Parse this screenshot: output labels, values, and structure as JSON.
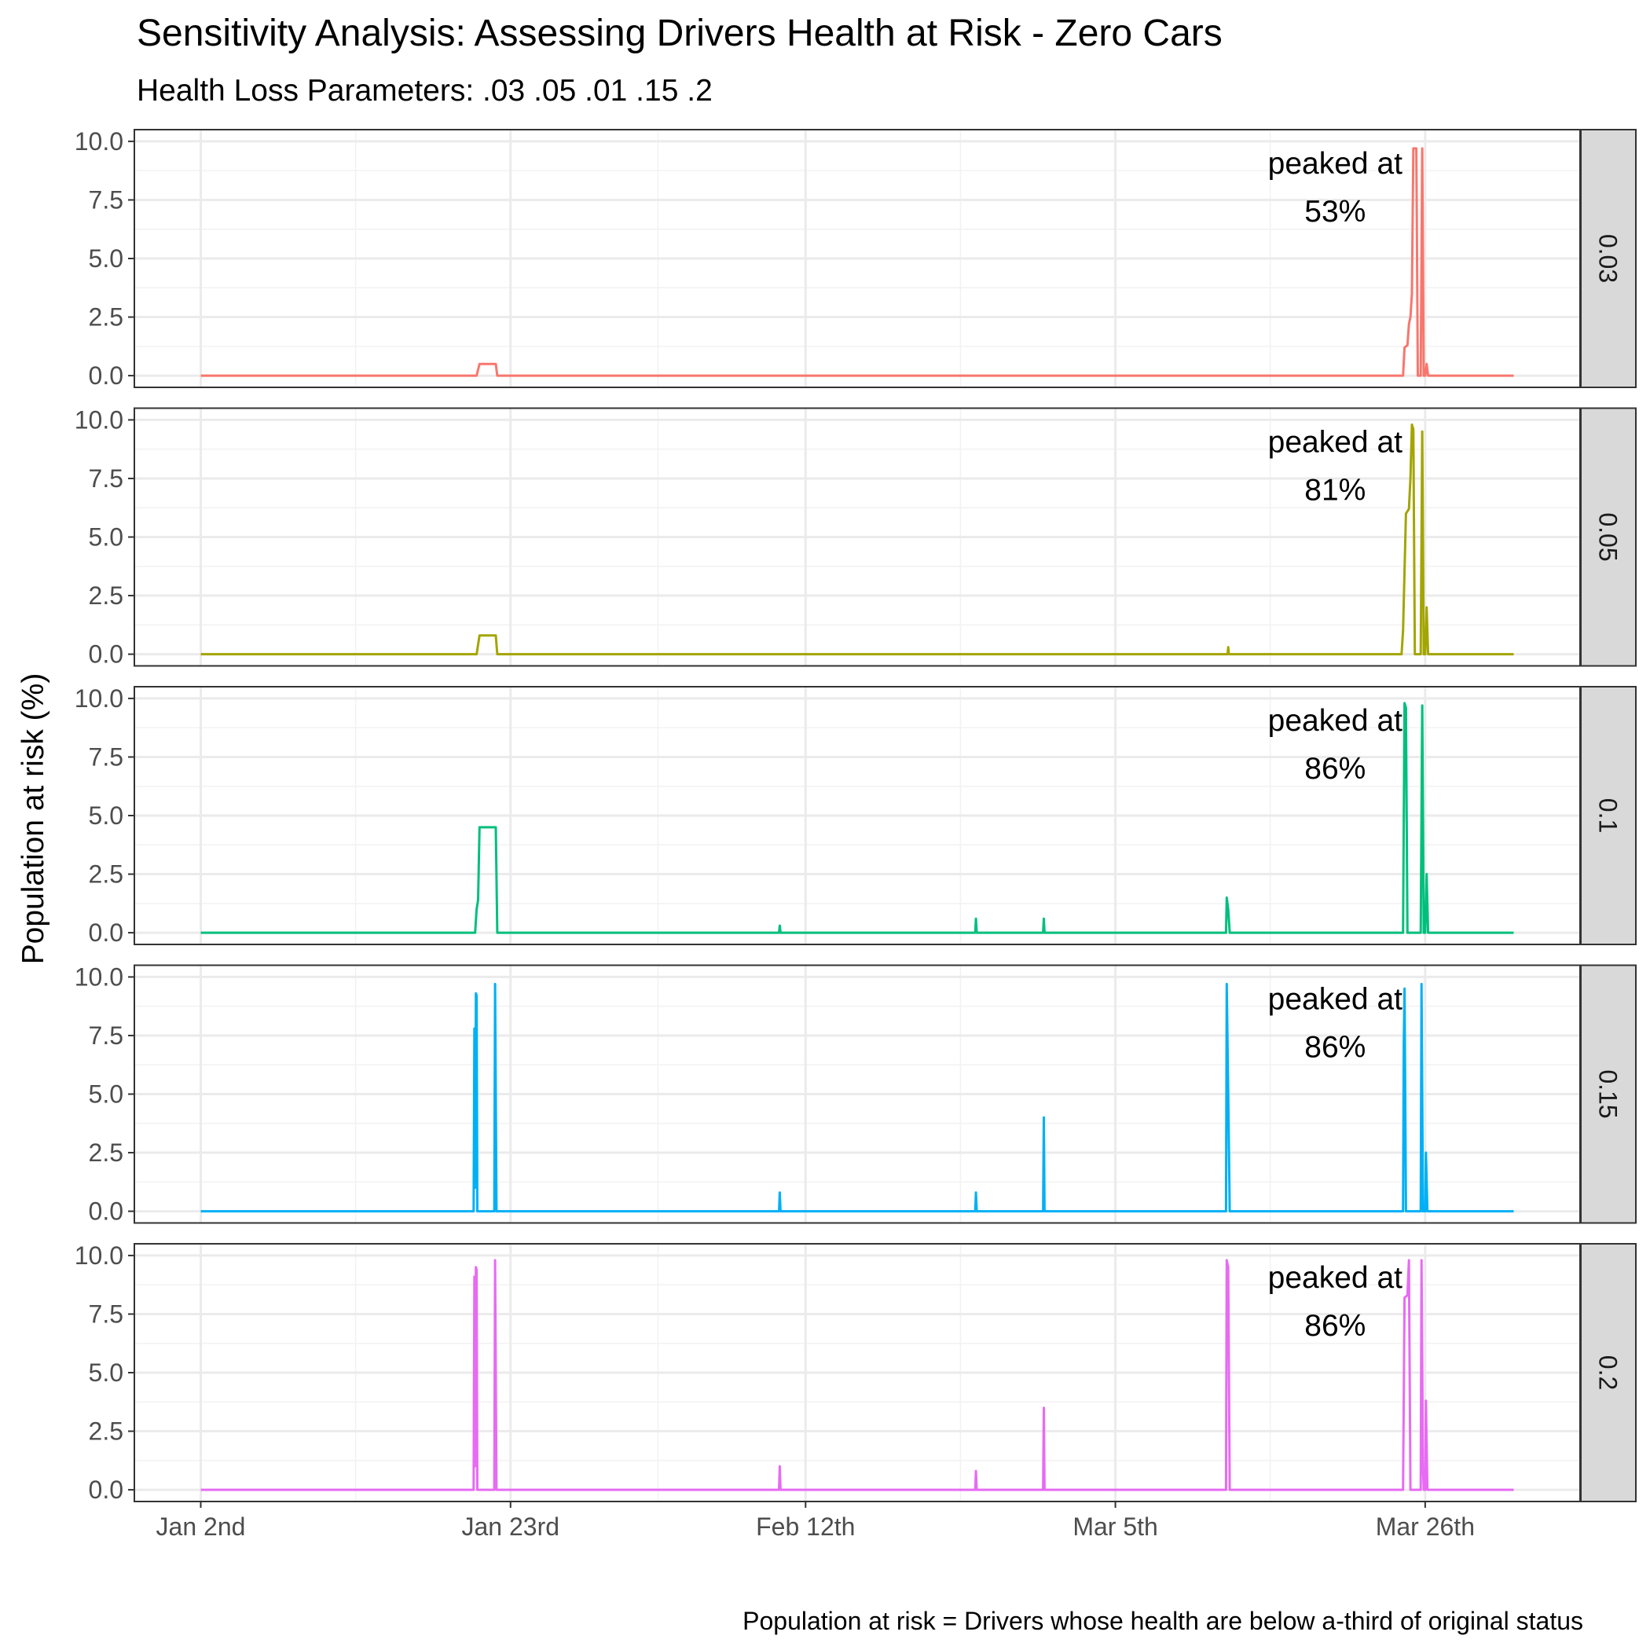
{
  "chart_data": {
    "type": "line",
    "title": "Sensitivity Analysis: Assessing Drivers Health at Risk - Zero Cars",
    "subtitle": "Health Loss Parameters: .03 .05 .01 .15 .2",
    "xlabel": "",
    "ylabel": "Population at risk (%)",
    "caption": "Population at risk = Drivers whose health are below a-third of original status",
    "x_ticks": [
      {
        "day": 0,
        "label": "Jan 2nd"
      },
      {
        "day": 21,
        "label": "Jan 23rd"
      },
      {
        "day": 41,
        "label": "Feb 12th"
      },
      {
        "day": 62,
        "label": "Mar 5th"
      },
      {
        "day": 83,
        "label": "Mar 26th"
      }
    ],
    "xlim_days": [
      -4.5,
      93.5
    ],
    "y_ticks": [
      "0.0",
      "2.5",
      "5.0",
      "7.5",
      "10.0"
    ],
    "ylim": [
      -0.5,
      10.5
    ],
    "grid": true,
    "facets": [
      {
        "label": "0.03",
        "color": "#F8766D",
        "annotation": [
          "peaked at",
          "53%"
        ],
        "points": [
          [
            0,
            0
          ],
          [
            18.7,
            0
          ],
          [
            18.9,
            0.5
          ],
          [
            20,
            0.5
          ],
          [
            20.1,
            0
          ],
          [
            81.5,
            0
          ],
          [
            81.6,
            1.2
          ],
          [
            81.8,
            1.3
          ],
          [
            81.9,
            2.2
          ],
          [
            82.0,
            2.5
          ],
          [
            82.1,
            3.5
          ],
          [
            82.2,
            9.7
          ],
          [
            82.4,
            9.7
          ],
          [
            82.5,
            0
          ],
          [
            82.7,
            0
          ],
          [
            82.8,
            9.7
          ],
          [
            82.9,
            0
          ],
          [
            83.0,
            0
          ],
          [
            83.1,
            0.5
          ],
          [
            83.2,
            0
          ],
          [
            89,
            0
          ]
        ]
      },
      {
        "label": "0.05",
        "color": "#A3A500",
        "annotation": [
          "peaked at",
          "81%"
        ],
        "points": [
          [
            0,
            0
          ],
          [
            18.7,
            0
          ],
          [
            18.9,
            0.8
          ],
          [
            20,
            0.8
          ],
          [
            20.1,
            0
          ],
          [
            69.6,
            0
          ],
          [
            69.65,
            0.3
          ],
          [
            69.7,
            0
          ],
          [
            81.4,
            0
          ],
          [
            81.5,
            1
          ],
          [
            81.7,
            6
          ],
          [
            81.9,
            6.2
          ],
          [
            82.0,
            7.5
          ],
          [
            82.1,
            9.8
          ],
          [
            82.2,
            9.6
          ],
          [
            82.3,
            0
          ],
          [
            82.7,
            0
          ],
          [
            82.8,
            9.5
          ],
          [
            82.9,
            0
          ],
          [
            83.0,
            0
          ],
          [
            83.1,
            2
          ],
          [
            83.2,
            0
          ],
          [
            89,
            0
          ]
        ]
      },
      {
        "label": "0.1",
        "color": "#00BF7D",
        "annotation": [
          "peaked at",
          "86%"
        ],
        "points": [
          [
            0,
            0
          ],
          [
            18.6,
            0
          ],
          [
            18.7,
            1
          ],
          [
            18.8,
            1.4
          ],
          [
            18.9,
            4.5
          ],
          [
            20,
            4.5
          ],
          [
            20.1,
            0
          ],
          [
            39.2,
            0
          ],
          [
            39.25,
            0.3
          ],
          [
            39.3,
            0
          ],
          [
            52.5,
            0
          ],
          [
            52.55,
            0.6
          ],
          [
            52.6,
            0
          ],
          [
            57.1,
            0
          ],
          [
            57.15,
            0.6
          ],
          [
            57.2,
            0
          ],
          [
            69.5,
            0
          ],
          [
            69.55,
            1.5
          ],
          [
            69.65,
            1
          ],
          [
            69.75,
            0
          ],
          [
            81.5,
            0
          ],
          [
            81.6,
            9.8
          ],
          [
            81.7,
            9.6
          ],
          [
            81.8,
            0
          ],
          [
            82.7,
            0
          ],
          [
            82.8,
            9.7
          ],
          [
            82.9,
            0
          ],
          [
            83.0,
            0
          ],
          [
            83.1,
            2.5
          ],
          [
            83.2,
            0
          ],
          [
            89,
            0
          ]
        ]
      },
      {
        "label": "0.15",
        "color": "#00B0F6",
        "annotation": [
          "peaked at",
          "86%"
        ],
        "points": [
          [
            0,
            0
          ],
          [
            18.5,
            0
          ],
          [
            18.55,
            7.8
          ],
          [
            18.6,
            1
          ],
          [
            18.65,
            9.3
          ],
          [
            18.7,
            9.2
          ],
          [
            18.75,
            0
          ],
          [
            19.9,
            0
          ],
          [
            19.95,
            9.7
          ],
          [
            20.05,
            0
          ],
          [
            39.2,
            0
          ],
          [
            39.25,
            0.8
          ],
          [
            39.3,
            0
          ],
          [
            52.5,
            0
          ],
          [
            52.55,
            0.8
          ],
          [
            52.6,
            0
          ],
          [
            57.1,
            0
          ],
          [
            57.15,
            4
          ],
          [
            57.2,
            0
          ],
          [
            69.5,
            0
          ],
          [
            69.55,
            9.7
          ],
          [
            69.65,
            5
          ],
          [
            69.75,
            0
          ],
          [
            81.5,
            0
          ],
          [
            81.55,
            7
          ],
          [
            81.6,
            9.5
          ],
          [
            81.7,
            0
          ],
          [
            82.7,
            0
          ],
          [
            82.75,
            9.7
          ],
          [
            82.85,
            0
          ],
          [
            83.0,
            0
          ],
          [
            83.05,
            2.5
          ],
          [
            83.15,
            0
          ],
          [
            89,
            0
          ]
        ]
      },
      {
        "label": "0.2",
        "color": "#E76BF3",
        "annotation": [
          "peaked at",
          "86%"
        ],
        "points": [
          [
            0,
            0
          ],
          [
            18.5,
            0
          ],
          [
            18.55,
            9.1
          ],
          [
            18.6,
            1
          ],
          [
            18.65,
            9.5
          ],
          [
            18.7,
            9.4
          ],
          [
            18.75,
            0
          ],
          [
            19.9,
            0
          ],
          [
            19.95,
            9.8
          ],
          [
            20.05,
            0
          ],
          [
            39.2,
            0
          ],
          [
            39.25,
            1
          ],
          [
            39.3,
            0
          ],
          [
            52.5,
            0
          ],
          [
            52.55,
            0.8
          ],
          [
            52.6,
            0
          ],
          [
            57.1,
            0
          ],
          [
            57.15,
            3.5
          ],
          [
            57.2,
            0
          ],
          [
            69.5,
            0
          ],
          [
            69.55,
            9.8
          ],
          [
            69.65,
            9.5
          ],
          [
            69.75,
            0
          ],
          [
            81.5,
            0
          ],
          [
            81.6,
            8.2
          ],
          [
            81.8,
            8.3
          ],
          [
            81.9,
            9.8
          ],
          [
            82.0,
            0
          ],
          [
            82.7,
            0
          ],
          [
            82.75,
            9.8
          ],
          [
            82.85,
            1
          ],
          [
            82.9,
            0
          ],
          [
            83.0,
            0
          ],
          [
            83.05,
            3.8
          ],
          [
            83.15,
            0
          ],
          [
            89,
            0
          ]
        ]
      }
    ]
  }
}
